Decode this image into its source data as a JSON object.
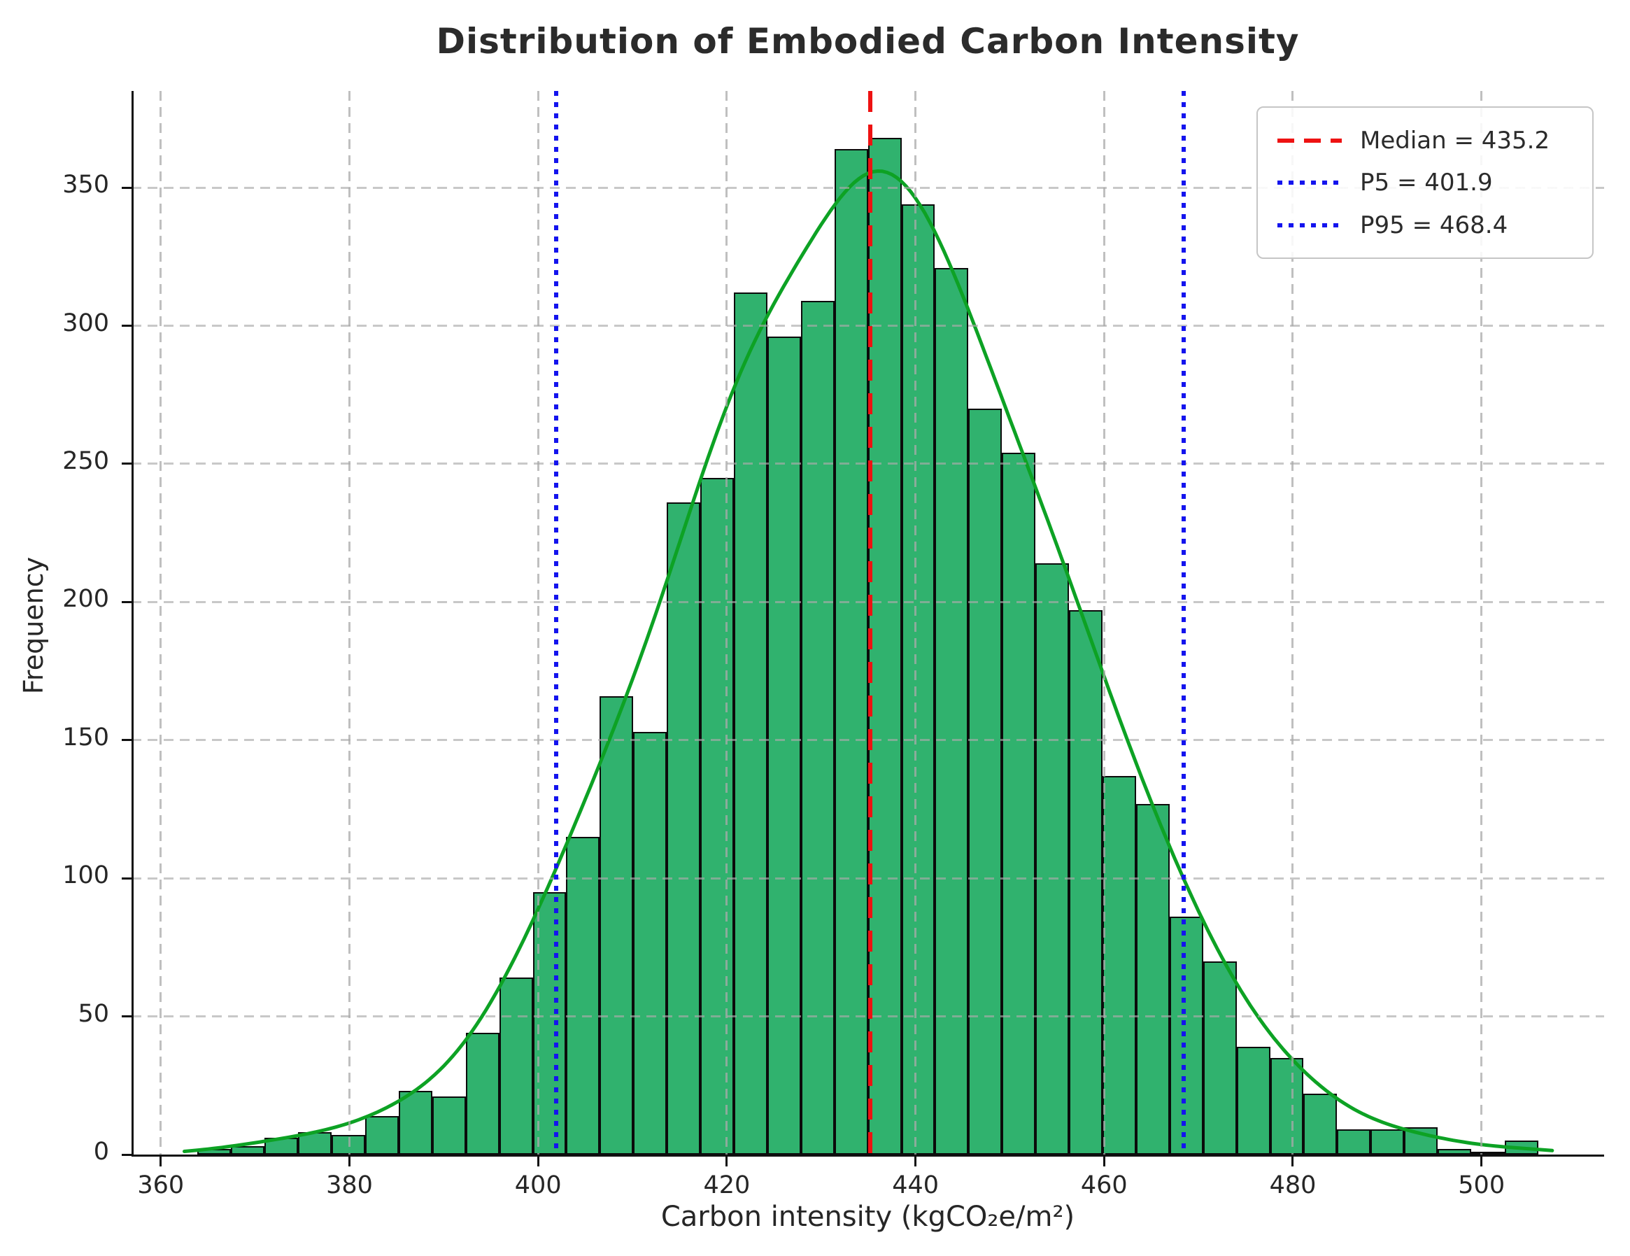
{
  "title": "Distribution of Embodied Carbon Intensity",
  "axes": {
    "x_label": "Carbon intensity (kgCO₂e/m²)",
    "y_label": "Frequency",
    "x_tick_labels": [
      "360",
      "380",
      "400",
      "420",
      "440",
      "460",
      "480",
      "500"
    ],
    "y_tick_labels": [
      "0",
      "50",
      "100",
      "150",
      "200",
      "250",
      "300",
      "350"
    ]
  },
  "chart_data": {
    "type": "bar",
    "subtype": "histogram",
    "title": "Distribution of Embodied Carbon Intensity",
    "xlabel": "Carbon intensity (kgCO₂e/m²)",
    "ylabel": "Frequency",
    "bin_start": 363.9,
    "bin_width": 3.553,
    "frequencies": [
      2,
      3,
      6,
      8,
      7,
      14,
      23,
      21,
      44,
      64,
      95,
      115,
      166,
      153,
      236,
      245,
      312,
      296,
      309,
      364,
      368,
      344,
      321,
      270,
      254,
      214,
      197,
      137,
      127,
      86,
      70,
      39,
      35,
      22,
      9,
      9,
      10,
      2,
      1,
      5
    ],
    "x_ticks": [
      360,
      380,
      400,
      420,
      440,
      460,
      480,
      500
    ],
    "y_ticks": [
      0,
      50,
      100,
      150,
      200,
      250,
      300,
      350
    ],
    "xlim": [
      356.9,
      513.0
    ],
    "ylim": [
      0,
      385
    ],
    "grid": true,
    "legend_position": "upper right",
    "kde_curve": {
      "peak_x": 436.3,
      "peak_y": 356,
      "smoothing_bandwidth": 5.2,
      "range": [
        362.5,
        507.5
      ]
    },
    "reference_lines": [
      {
        "name": "median",
        "value": 435.2,
        "label": "Median = 435.2",
        "color": "#ee1212",
        "style": "dashed"
      },
      {
        "name": "p5",
        "value": 401.9,
        "label": "P5 = 401.9",
        "color": "#1414ee",
        "style": "dotted"
      },
      {
        "name": "p95",
        "value": 468.4,
        "label": "P95 = 468.4",
        "color": "#1414ee",
        "style": "dotted"
      }
    ],
    "colors": {
      "bar_fill": "#30b26e",
      "bar_edge": "#0b0b0b",
      "kde_line": "#0da224",
      "median_line": "#ee1212",
      "percentile_line": "#1414ee",
      "grid_line": "#bdbdbd",
      "spine": "#111111",
      "text": "#262626",
      "background": "#ffffff",
      "legend_border": "#c6c6c6"
    }
  }
}
